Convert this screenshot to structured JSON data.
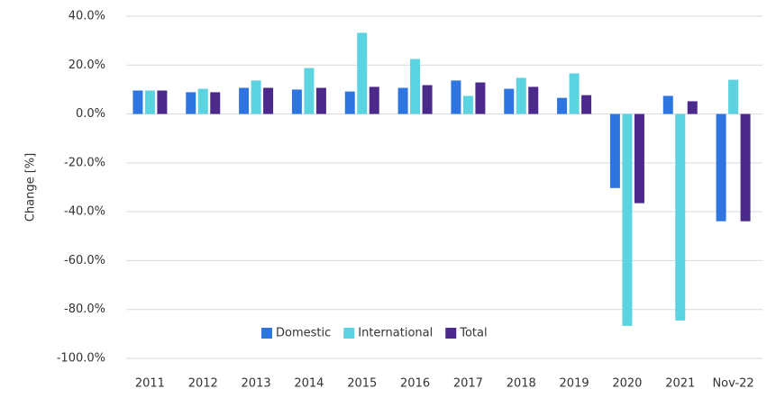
{
  "chart_data": {
    "type": "bar",
    "y_label": "Change [%]",
    "categories": [
      "2011",
      "2012",
      "2013",
      "2014",
      "2015",
      "2016",
      "2017",
      "2018",
      "2019",
      "2020",
      "2021",
      "Nov-22"
    ],
    "series": [
      {
        "name": "Domestic",
        "color": "#2e75e0",
        "values": [
          9.6,
          8.9,
          10.7,
          10.0,
          9.2,
          10.7,
          13.7,
          10.3,
          6.6,
          -30.3,
          7.4,
          -43.9
        ]
      },
      {
        "name": "International",
        "color": "#5bd3e0",
        "values": [
          9.6,
          10.3,
          13.7,
          18.8,
          33.2,
          22.5,
          7.4,
          14.8,
          16.6,
          -86.7,
          -84.5,
          14.0
        ]
      },
      {
        "name": "Total",
        "color": "#4b2a8c",
        "values": [
          9.6,
          8.9,
          10.7,
          10.7,
          11.1,
          11.8,
          12.9,
          11.1,
          7.7,
          -36.5,
          5.2,
          -43.9
        ]
      }
    ],
    "ylim": [
      -100,
      40
    ],
    "yticks": [
      {
        "value": -100,
        "label": "-100.0%"
      },
      {
        "value": -80,
        "label": "-80.0%"
      },
      {
        "value": -60,
        "label": "-60.0%"
      },
      {
        "value": -40,
        "label": "-40.0%"
      },
      {
        "value": -20,
        "label": "-20.0%"
      },
      {
        "value": 0,
        "label": "0.0%"
      },
      {
        "value": 20,
        "label": "20.0%"
      },
      {
        "value": 40,
        "label": "40.0%"
      }
    ],
    "grid": true,
    "legend": "bottom-left"
  }
}
